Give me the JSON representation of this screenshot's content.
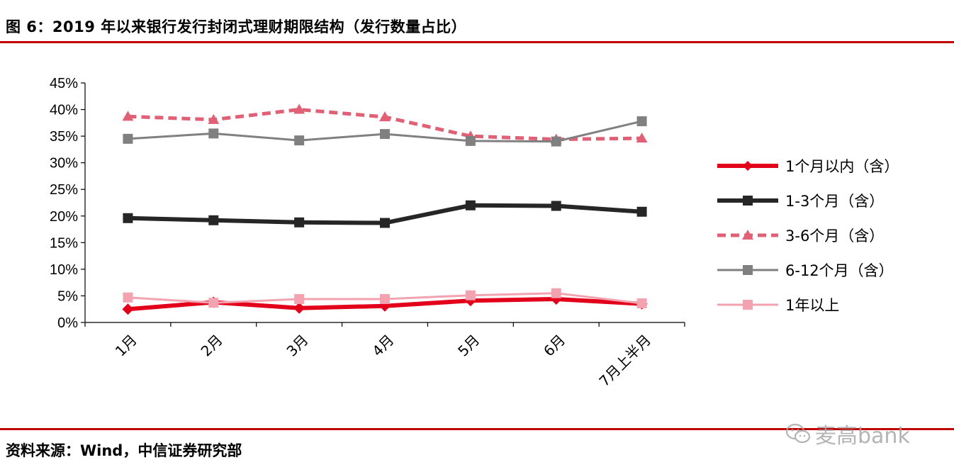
{
  "header": {
    "title": "图 6：2019 年以来银行发行封闭式理财期限结构（发行数量占比）"
  },
  "footer": {
    "source": "资料来源：Wind，中信证券研究部",
    "watermark": "麦高bank"
  },
  "chart_data": {
    "type": "line",
    "title": "图 6：2019 年以来银行发行封闭式理财期限结构（发行数量占比）",
    "xlabel": "",
    "ylabel": "",
    "ylim": [
      0,
      45
    ],
    "yticks": [
      "0%",
      "5%",
      "10%",
      "15%",
      "20%",
      "25%",
      "30%",
      "35%",
      "40%",
      "45%"
    ],
    "categories": [
      "1月",
      "2月",
      "3月",
      "4月",
      "5月",
      "6月",
      "7月上半月"
    ],
    "legend_position": "right",
    "series": [
      {
        "name": "1个月以内（含）",
        "values": [
          2.5,
          3.8,
          2.7,
          3.1,
          4.1,
          4.4,
          3.5
        ],
        "color": "#e3001b",
        "marker": "diamond",
        "style": "solid",
        "width": 6
      },
      {
        "name": "1-3个月（含）",
        "values": [
          19.6,
          19.2,
          18.8,
          18.7,
          22.0,
          21.9,
          20.8
        ],
        "color": "#262626",
        "marker": "square",
        "style": "solid",
        "width": 6
      },
      {
        "name": "3-6个月（含）",
        "values": [
          38.7,
          38.1,
          40.0,
          38.6,
          35.0,
          34.4,
          34.6
        ],
        "color": "#e06075",
        "marker": "triangle",
        "style": "dashed",
        "width": 5
      },
      {
        "name": "6-12个月（含）",
        "values": [
          34.5,
          35.5,
          34.2,
          35.4,
          34.1,
          34.0,
          37.8
        ],
        "color": "#808080",
        "marker": "square",
        "style": "solid",
        "width": 3
      },
      {
        "name": "1年以上",
        "values": [
          4.7,
          3.7,
          4.4,
          4.4,
          5.1,
          5.5,
          3.6
        ],
        "color": "#f3a3b0",
        "marker": "square",
        "style": "solid",
        "width": 3
      }
    ]
  }
}
